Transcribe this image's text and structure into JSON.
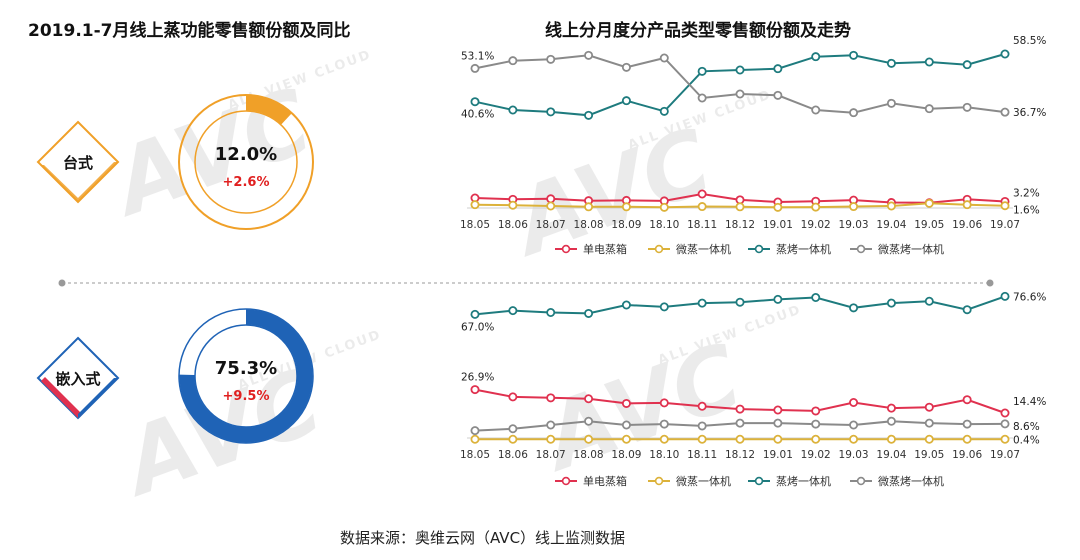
{
  "titles": {
    "left": "2019.1-7月线上蒸功能零售额份额及同比",
    "right": "线上分月度分产品类型零售额份额及走势"
  },
  "source": "数据来源：奥维云网（AVC）线上监测数据",
  "watermark": {
    "main": "AVC",
    "sub": "ALL VIEW CLOUD"
  },
  "colors": {
    "orange": "#f0a028",
    "blue": "#1f63b6",
    "red": "#e0314f",
    "yellow": "#dcb23a",
    "teal": "#1e7b7e",
    "gray": "#8a8a8a",
    "up": "#e02020"
  },
  "donuts": [
    {
      "category": "台式",
      "share_label": "12.0%",
      "yoy_label": "+2.6%",
      "share": 0.12,
      "color": "#f0a028"
    },
    {
      "category": "嵌入式",
      "share_label": "75.3%",
      "yoy_label": "+9.5%",
      "share": 0.753,
      "color": "#1f63b6"
    }
  ],
  "chart_data": [
    {
      "type": "line",
      "title": "台式",
      "categories": [
        "18.05",
        "18.06",
        "18.07",
        "18.08",
        "18.09",
        "18.10",
        "18.11",
        "18.12",
        "19.01",
        "19.02",
        "19.03",
        "19.04",
        "19.05",
        "19.06",
        "19.07"
      ],
      "ylim": [
        0,
        60
      ],
      "series": [
        {
          "name": "单电蒸箱",
          "color": "#e0314f",
          "values": [
            4.5,
            4.0,
            4.2,
            3.5,
            3.6,
            3.4,
            6.0,
            3.8,
            3.0,
            3.3,
            3.7,
            2.8,
            2.7,
            4.0,
            3.2
          ],
          "label_first": "",
          "label_last": "3.2%"
        },
        {
          "name": "微蒸一体机",
          "color": "#dcb23a",
          "values": [
            2.0,
            1.8,
            1.5,
            1.2,
            1.2,
            1.0,
            1.3,
            1.2,
            1.0,
            1.1,
            1.3,
            1.5,
            2.5,
            2.0,
            1.6
          ],
          "label_first": "",
          "label_last": "1.6%"
        },
        {
          "name": "蒸烤一体机",
          "color": "#1e7b7e",
          "values": [
            40.6,
            37.5,
            36.8,
            35.5,
            41.0,
            37.0,
            52.0,
            52.5,
            53.0,
            57.5,
            58.0,
            55.0,
            55.5,
            54.5,
            58.5
          ],
          "label_first": "40.6%",
          "label_last": "58.5%"
        },
        {
          "name": "微蒸烤一体机",
          "color": "#8a8a8a",
          "values": [
            53.1,
            56.0,
            56.5,
            58.0,
            53.5,
            57.0,
            42.0,
            43.5,
            43.0,
            37.5,
            36.5,
            40.0,
            38.0,
            38.5,
            36.7
          ],
          "label_first": "53.1%",
          "label_last": "36.7%"
        }
      ]
    },
    {
      "type": "line",
      "title": "嵌入式",
      "categories": [
        "18.05",
        "18.06",
        "18.07",
        "18.08",
        "18.09",
        "18.10",
        "18.11",
        "18.12",
        "19.01",
        "19.02",
        "19.03",
        "19.04",
        "19.05",
        "19.06",
        "19.07"
      ],
      "ylim": [
        0,
        80
      ],
      "series": [
        {
          "name": "单电蒸箱",
          "color": "#e0314f",
          "values": [
            26.9,
            23.0,
            22.5,
            22.0,
            19.5,
            19.8,
            18.0,
            16.5,
            16.0,
            15.5,
            20.0,
            17.0,
            17.5,
            21.5,
            14.4
          ],
          "label_first": "26.9%",
          "label_last": "14.4%"
        },
        {
          "name": "微蒸一体机",
          "color": "#dcb23a",
          "values": [
            0.4,
            0.4,
            0.4,
            0.4,
            0.4,
            0.4,
            0.4,
            0.4,
            0.4,
            0.4,
            0.4,
            0.4,
            0.4,
            0.4,
            0.4
          ],
          "label_first": "",
          "label_last": "0.4%"
        },
        {
          "name": "蒸烤一体机",
          "color": "#1e7b7e",
          "values": [
            67.0,
            69.0,
            68.0,
            67.5,
            72.0,
            71.0,
            73.0,
            73.5,
            75.0,
            76.0,
            70.5,
            73.0,
            74.0,
            69.5,
            76.6
          ],
          "label_first": "67.0%",
          "label_last": "76.6%"
        },
        {
          "name": "微蒸烤一体机",
          "color": "#8a8a8a",
          "values": [
            5.0,
            6.0,
            8.0,
            10.0,
            8.0,
            8.5,
            7.5,
            9.0,
            9.0,
            8.5,
            8.0,
            10.0,
            9.0,
            8.5,
            8.6
          ],
          "label_first": "",
          "label_last": "8.6%"
        }
      ]
    }
  ]
}
